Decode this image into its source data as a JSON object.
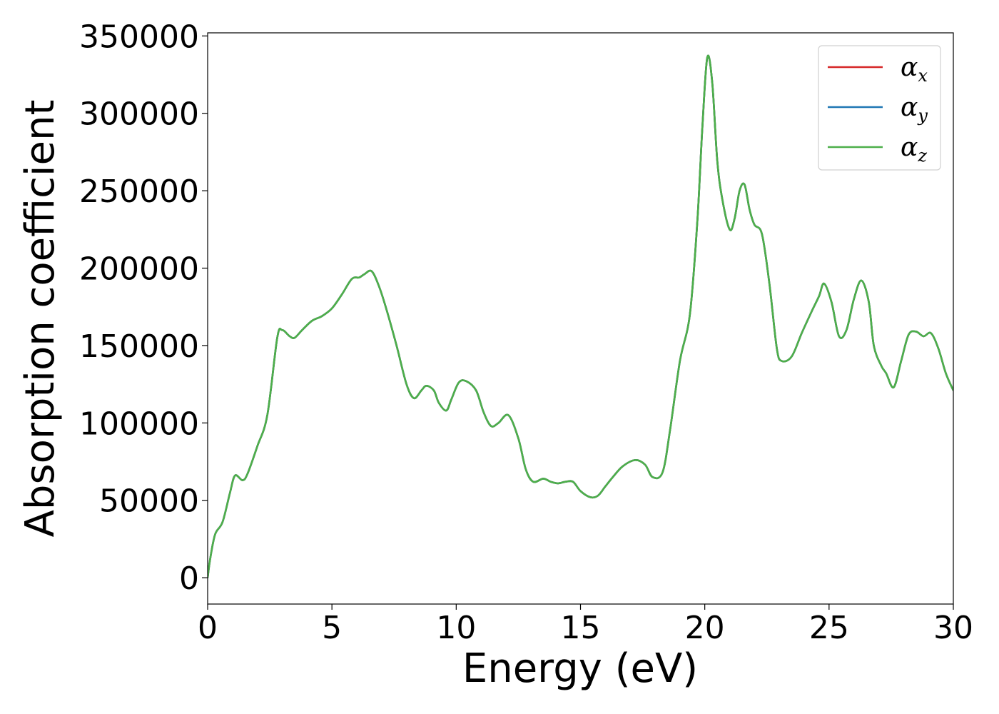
{
  "chart_data": {
    "type": "line",
    "title": "",
    "xlabel": "Energy (eV)",
    "ylabel": "Absorption coefficient",
    "xlim": [
      0,
      30
    ],
    "ylim": [
      -17000,
      352000
    ],
    "x_ticks": [
      "0",
      "5",
      "10",
      "15",
      "20",
      "25",
      "30"
    ],
    "y_ticks": [
      "0",
      "50000",
      "100000",
      "150000",
      "200000",
      "250000",
      "300000",
      "350000"
    ],
    "grid": false,
    "legend_position": "top-right",
    "colors": {
      "x": "#d62728",
      "y": "#1f77b4",
      "z": "#4daf4a"
    },
    "x": [
      0,
      0.1,
      0.3,
      0.6,
      0.9,
      1.1,
      1.4,
      1.6,
      2.0,
      2.4,
      2.8,
      3.0,
      3.3,
      3.5,
      3.8,
      4.2,
      4.6,
      5.0,
      5.4,
      5.8,
      6.1,
      6.3,
      6.6,
      6.9,
      7.2,
      7.6,
      8.0,
      8.3,
      8.6,
      8.8,
      9.1,
      9.3,
      9.6,
      9.8,
      10.1,
      10.4,
      10.8,
      11.1,
      11.4,
      11.7,
      12.1,
      12.5,
      12.8,
      13.1,
      13.5,
      13.8,
      14.1,
      14.4,
      14.7,
      15.0,
      15.4,
      15.7,
      16.0,
      16.3,
      16.7,
      17.2,
      17.6,
      17.9,
      18.3,
      18.6,
      19.0,
      19.4,
      19.7,
      19.9,
      20.1,
      20.3,
      20.5,
      20.7,
      21.0,
      21.2,
      21.4,
      21.6,
      21.8,
      22.0,
      22.3,
      22.6,
      22.9,
      23.1,
      23.5,
      23.9,
      24.3,
      24.6,
      24.8,
      25.1,
      25.4,
      25.7,
      26.0,
      26.3,
      26.6,
      26.8,
      27.1,
      27.3,
      27.6,
      27.9,
      28.2,
      28.5,
      28.8,
      29.1,
      29.4,
      29.7,
      30.0
    ],
    "series": [
      {
        "name": "α_x",
        "values": [
          0,
          12000,
          28000,
          36000,
          55000,
          66000,
          63000,
          67000,
          85000,
          105000,
          155000,
          160000,
          156000,
          155000,
          160000,
          166000,
          169000,
          174000,
          183000,
          193000,
          194000,
          196000,
          198000,
          188000,
          173000,
          150000,
          125000,
          116000,
          121000,
          124000,
          121000,
          113000,
          108000,
          115000,
          126000,
          127000,
          121000,
          107000,
          98000,
          100000,
          105000,
          90000,
          70000,
          62000,
          64000,
          62000,
          61000,
          62000,
          62000,
          56000,
          52000,
          53000,
          59000,
          65000,
          72000,
          76000,
          73000,
          65000,
          68000,
          95000,
          140000,
          170000,
          230000,
          290000,
          336000,
          320000,
          270000,
          245000,
          225000,
          232000,
          250000,
          254000,
          238000,
          228000,
          222000,
          190000,
          148000,
          140000,
          143000,
          158000,
          172000,
          182000,
          190000,
          178000,
          156000,
          160000,
          180000,
          192000,
          178000,
          150000,
          137000,
          132000,
          123000,
          140000,
          157000,
          159000,
          156000,
          158000,
          148000,
          132000,
          121000
        ]
      },
      {
        "name": "α_y",
        "values": [
          0,
          12000,
          28000,
          36000,
          55000,
          66000,
          63000,
          67000,
          85000,
          105000,
          155000,
          160000,
          156000,
          155000,
          160000,
          166000,
          169000,
          174000,
          183000,
          193000,
          194000,
          196000,
          198000,
          188000,
          173000,
          150000,
          125000,
          116000,
          121000,
          124000,
          121000,
          113000,
          108000,
          115000,
          126000,
          127000,
          121000,
          107000,
          98000,
          100000,
          105000,
          90000,
          70000,
          62000,
          64000,
          62000,
          61000,
          62000,
          62000,
          56000,
          52000,
          53000,
          59000,
          65000,
          72000,
          76000,
          73000,
          65000,
          68000,
          95000,
          140000,
          170000,
          230000,
          290000,
          336000,
          320000,
          270000,
          245000,
          225000,
          232000,
          250000,
          254000,
          238000,
          228000,
          222000,
          190000,
          148000,
          140000,
          143000,
          158000,
          172000,
          182000,
          190000,
          178000,
          156000,
          160000,
          180000,
          192000,
          178000,
          150000,
          137000,
          132000,
          123000,
          140000,
          157000,
          159000,
          156000,
          158000,
          148000,
          132000,
          121000
        ]
      },
      {
        "name": "α_z",
        "values": [
          0,
          12000,
          28000,
          36000,
          55000,
          66000,
          63000,
          67000,
          85000,
          105000,
          155000,
          160000,
          156000,
          155000,
          160000,
          166000,
          169000,
          174000,
          183000,
          193000,
          194000,
          196000,
          198000,
          188000,
          173000,
          150000,
          125000,
          116000,
          121000,
          124000,
          121000,
          113000,
          108000,
          115000,
          126000,
          127000,
          121000,
          107000,
          98000,
          100000,
          105000,
          90000,
          70000,
          62000,
          64000,
          62000,
          61000,
          62000,
          62000,
          56000,
          52000,
          53000,
          59000,
          65000,
          72000,
          76000,
          73000,
          65000,
          68000,
          95000,
          140000,
          170000,
          230000,
          290000,
          336000,
          320000,
          270000,
          245000,
          225000,
          232000,
          250000,
          254000,
          238000,
          228000,
          222000,
          190000,
          148000,
          140000,
          143000,
          158000,
          172000,
          182000,
          190000,
          178000,
          156000,
          160000,
          180000,
          192000,
          178000,
          150000,
          137000,
          132000,
          123000,
          140000,
          157000,
          159000,
          156000,
          158000,
          148000,
          132000,
          121000
        ]
      }
    ],
    "legend": [
      {
        "symbol": "α",
        "sub": "x",
        "series": 0
      },
      {
        "symbol": "α",
        "sub": "y",
        "series": 1
      },
      {
        "symbol": "α",
        "sub": "z",
        "series": 2
      }
    ]
  }
}
